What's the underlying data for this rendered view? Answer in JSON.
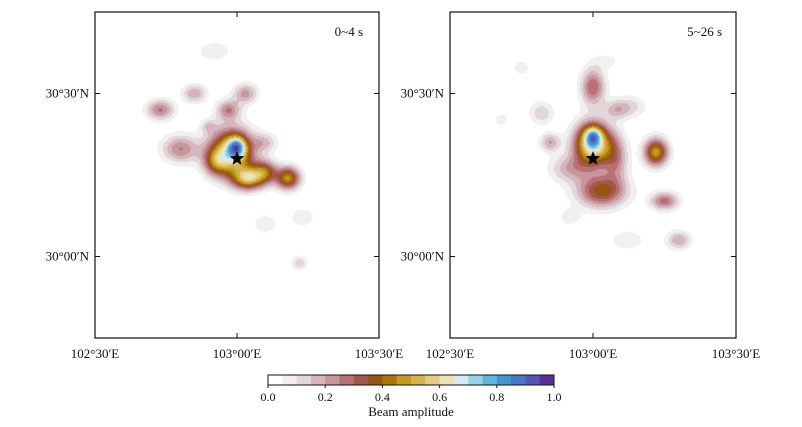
{
  "chart_data": {
    "type": "heatmap",
    "colorbar": {
      "label": "Beam amplitude",
      "range": [
        0.0,
        1.0
      ],
      "ticks": [
        {
          "value": 0.0,
          "label": "0.0"
        },
        {
          "value": 0.2,
          "label": "0.2"
        },
        {
          "value": 0.4,
          "label": "0.4"
        },
        {
          "value": 0.6,
          "label": "0.6"
        },
        {
          "value": 0.8,
          "label": "0.8"
        },
        {
          "value": 1.0,
          "label": "1.0"
        }
      ],
      "colors": [
        "#ffffff",
        "#f1efef",
        "#e2d6d8",
        "#d4b7bc",
        "#c7959c",
        "#b97074",
        "#a5584a",
        "#96560f",
        "#ad7508",
        "#c49a1a",
        "#d3b449",
        "#e4cd84",
        "#eee3b6",
        "#d6eaf2",
        "#98d2e6",
        "#5fb5dc",
        "#4196d1",
        "#4878c5",
        "#5654b4",
        "#5a2f9c"
      ]
    },
    "panels": [
      {
        "label": "0~4 s",
        "xlim": [
          102.5,
          103.5
        ],
        "ylim": [
          29.75,
          30.75
        ],
        "xticks": [
          {
            "value": 102.5,
            "label": "102°30′E"
          },
          {
            "value": 103.0,
            "label": "103°00′E"
          },
          {
            "value": 103.5,
            "label": "103°30′E"
          }
        ],
        "yticks": [
          {
            "value": 30.5,
            "label": "30°30′N"
          },
          {
            "value": 30.0,
            "label": "30°00′N"
          }
        ],
        "epicenter": {
          "lon": 103.0,
          "lat": 30.3
        },
        "blobs": [
          {
            "lon": 102.98,
            "lat": 30.32,
            "sx": 0.055,
            "sy": 0.05,
            "amp": 0.62
          },
          {
            "lon": 103.0,
            "lat": 30.335,
            "sx": 0.022,
            "sy": 0.022,
            "amp": 0.4
          },
          {
            "lon": 102.925,
            "lat": 30.29,
            "sx": 0.03,
            "sy": 0.028,
            "amp": 0.24
          },
          {
            "lon": 103.04,
            "lat": 30.24,
            "sx": 0.04,
            "sy": 0.025,
            "amp": 0.5
          },
          {
            "lon": 103.1,
            "lat": 30.26,
            "sx": 0.03,
            "sy": 0.025,
            "amp": 0.32
          },
          {
            "lon": 103.18,
            "lat": 30.24,
            "sx": 0.03,
            "sy": 0.025,
            "amp": 0.46
          },
          {
            "lon": 102.8,
            "lat": 30.33,
            "sx": 0.045,
            "sy": 0.03,
            "amp": 0.25
          },
          {
            "lon": 102.73,
            "lat": 30.45,
            "sx": 0.035,
            "sy": 0.022,
            "amp": 0.26
          },
          {
            "lon": 102.85,
            "lat": 30.5,
            "sx": 0.03,
            "sy": 0.02,
            "amp": 0.2
          },
          {
            "lon": 102.97,
            "lat": 30.45,
            "sx": 0.03,
            "sy": 0.022,
            "amp": 0.24
          },
          {
            "lon": 103.03,
            "lat": 30.5,
            "sx": 0.03,
            "sy": 0.022,
            "amp": 0.22
          },
          {
            "lon": 103.1,
            "lat": 30.35,
            "sx": 0.03,
            "sy": 0.02,
            "amp": 0.14
          },
          {
            "lon": 102.92,
            "lat": 30.63,
            "sx": 0.05,
            "sy": 0.025,
            "amp": 0.08
          },
          {
            "lon": 103.1,
            "lat": 30.1,
            "sx": 0.03,
            "sy": 0.02,
            "amp": 0.1
          },
          {
            "lon": 103.23,
            "lat": 30.12,
            "sx": 0.03,
            "sy": 0.02,
            "amp": 0.1
          },
          {
            "lon": 103.22,
            "lat": 29.98,
            "sx": 0.02,
            "sy": 0.015,
            "amp": 0.14
          },
          {
            "lon": 102.9,
            "lat": 30.4,
            "sx": 0.02,
            "sy": 0.015,
            "amp": 0.12
          }
        ]
      },
      {
        "label": "5~26 s",
        "xlim": [
          102.5,
          103.5
        ],
        "ylim": [
          29.75,
          30.75
        ],
        "xticks": [
          {
            "value": 102.5,
            "label": "102°30′E"
          },
          {
            "value": 103.0,
            "label": "103°00′E"
          },
          {
            "value": 103.5,
            "label": "103°30′E"
          }
        ],
        "yticks": [
          {
            "value": 30.5,
            "label": "30°30′N"
          },
          {
            "value": 30.0,
            "label": "30°00′N"
          }
        ],
        "epicenter": {
          "lon": 103.0,
          "lat": 30.3
        },
        "blobs": [
          {
            "lon": 103.0,
            "lat": 30.345,
            "sx": 0.045,
            "sy": 0.045,
            "amp": 0.7
          },
          {
            "lon": 103.0,
            "lat": 30.37,
            "sx": 0.02,
            "sy": 0.02,
            "amp": 0.3
          },
          {
            "lon": 103.03,
            "lat": 30.2,
            "sx": 0.06,
            "sy": 0.035,
            "amp": 0.38
          },
          {
            "lon": 103.08,
            "lat": 30.3,
            "sx": 0.03,
            "sy": 0.05,
            "amp": 0.22
          },
          {
            "lon": 103.22,
            "lat": 30.32,
            "sx": 0.03,
            "sy": 0.03,
            "amp": 0.48
          },
          {
            "lon": 103.25,
            "lat": 30.17,
            "sx": 0.035,
            "sy": 0.02,
            "amp": 0.28
          },
          {
            "lon": 102.92,
            "lat": 30.27,
            "sx": 0.05,
            "sy": 0.03,
            "amp": 0.18
          },
          {
            "lon": 103.0,
            "lat": 30.52,
            "sx": 0.03,
            "sy": 0.04,
            "amp": 0.3
          },
          {
            "lon": 103.08,
            "lat": 30.45,
            "sx": 0.03,
            "sy": 0.02,
            "amp": 0.14
          },
          {
            "lon": 103.13,
            "lat": 30.46,
            "sx": 0.04,
            "sy": 0.025,
            "amp": 0.12
          },
          {
            "lon": 102.82,
            "lat": 30.44,
            "sx": 0.03,
            "sy": 0.025,
            "amp": 0.14
          },
          {
            "lon": 102.85,
            "lat": 30.35,
            "sx": 0.025,
            "sy": 0.02,
            "amp": 0.2
          },
          {
            "lon": 102.75,
            "lat": 30.58,
            "sx": 0.02,
            "sy": 0.015,
            "amp": 0.1
          },
          {
            "lon": 102.68,
            "lat": 30.42,
            "sx": 0.02,
            "sy": 0.015,
            "amp": 0.08
          },
          {
            "lon": 103.3,
            "lat": 30.05,
            "sx": 0.03,
            "sy": 0.02,
            "amp": 0.2
          },
          {
            "lon": 103.12,
            "lat": 30.05,
            "sx": 0.05,
            "sy": 0.025,
            "amp": 0.08
          },
          {
            "lon": 102.92,
            "lat": 30.12,
            "sx": 0.03,
            "sy": 0.02,
            "amp": 0.08
          },
          {
            "lon": 103.3,
            "lat": 29.92,
            "sx": 0.025,
            "sy": 0.015,
            "amp": 0.05
          },
          {
            "lon": 103.05,
            "lat": 30.6,
            "sx": 0.04,
            "sy": 0.02,
            "amp": 0.06
          }
        ]
      }
    ]
  }
}
